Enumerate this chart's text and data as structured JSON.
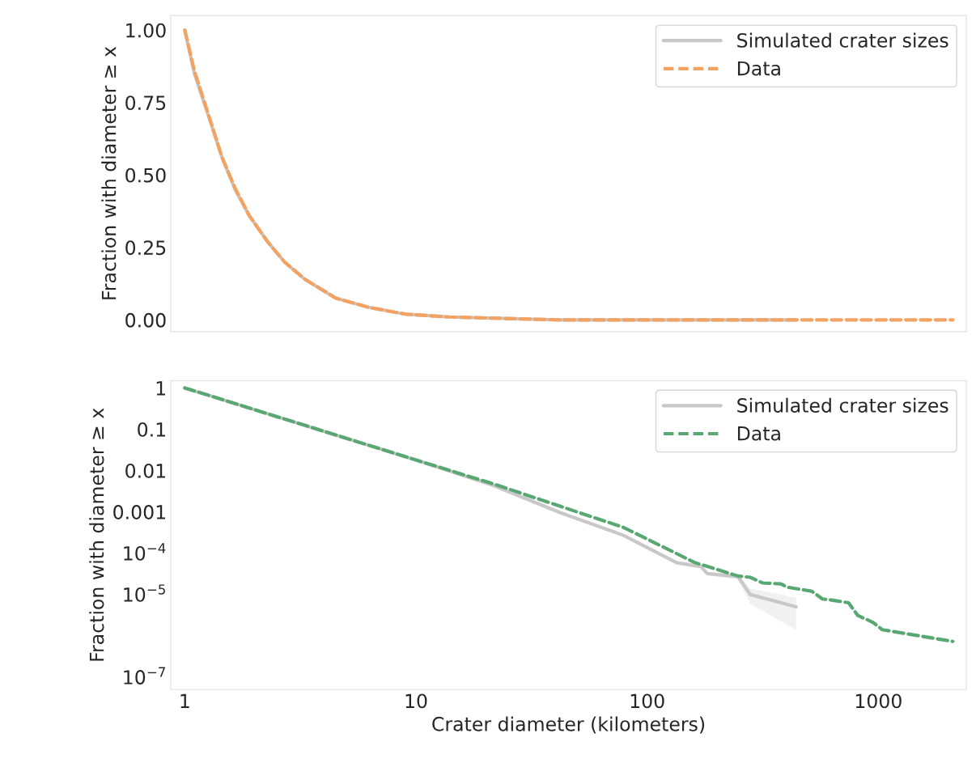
{
  "chart_data": [
    {
      "type": "line",
      "ylabel": "Fraction with diameter ≥ x",
      "xlim": [
        0.87,
        2400
      ],
      "ylim": [
        -0.04,
        1.05
      ],
      "yticks": [
        {
          "value": 0,
          "label": "0.00"
        },
        {
          "value": 0.25,
          "label": "0.25"
        },
        {
          "value": 0.5,
          "label": "0.50"
        },
        {
          "value": 0.75,
          "label": "0.75"
        },
        {
          "value": 1,
          "label": "1.00"
        }
      ],
      "log": "x",
      "grid": false,
      "legend": "top right",
      "tick_labels": "y",
      "series": [
        {
          "name": "Simulated crater sizes",
          "color": "#c8c8c8",
          "line_style": "solid",
          "x": [
            1,
            1.1,
            1.27,
            1.45,
            1.65,
            1.9,
            2.28,
            2.7,
            3.31,
            4.5,
            6.28,
            9,
            13.9,
            42,
            134,
            441
          ],
          "values": [
            1,
            0.85,
            0.7,
            0.56,
            0.45,
            0.36,
            0.27,
            0.2,
            0.14,
            0.075,
            0.043,
            0.02,
            0.01,
            0,
            0,
            0
          ]
        },
        {
          "name": "Data",
          "color": "#f4a261",
          "line_style": "dashed",
          "x": [
            1,
            1.1,
            1.27,
            1.45,
            1.65,
            1.9,
            2.28,
            2.7,
            3.31,
            4.5,
            6.28,
            9,
            13.9,
            42,
            134,
            441,
            2100
          ],
          "values": [
            1,
            0.86,
            0.705,
            0.56,
            0.455,
            0.36,
            0.27,
            0.2,
            0.14,
            0.075,
            0.043,
            0.02,
            0.01,
            0,
            0,
            0,
            0
          ]
        }
      ]
    },
    {
      "type": "line",
      "ylabel": "Fraction with diameter ≥ x",
      "xlabel": "Crater diameter (kilometers)",
      "xlim": [
        0.87,
        2400
      ],
      "ylim": [
        5e-08,
        1.5
      ],
      "xticks": [
        1,
        10,
        100,
        1000
      ],
      "yticks": [
        1,
        0.1,
        0.01,
        0.001,
        {
          "value": 0.0001,
          "label": "10$^{−4}$"
        },
        {
          "value": 1e-05,
          "label": "10$^{−5}$"
        },
        {
          "value": 1e-07,
          "label": "10$^{−7}$"
        }
      ],
      "log": "xy",
      "grid": false,
      "legend": "top right",
      "series": [
        {
          "name": "Simulated crater sizes",
          "color": "#c8c8c8",
          "line_style": "solid",
          "x": [
            1,
            10,
            21.5,
            42,
            79,
            134,
            171,
            182,
            247,
            279,
            441
          ],
          "values": [
            1,
            0.018,
            0.0044,
            0.00096,
            0.00027,
            5.9e-05,
            4.7e-05,
            3.2e-05,
            2.7e-05,
            1e-05,
            5e-06
          ],
          "lower": [
            1,
            0.018,
            0.0044,
            0.00094,
            0.00026,
            5.6e-05,
            4.4e-05,
            2.9e-05,
            2.3e-05,
            6e-06,
            1.4e-06
          ],
          "upper": [
            1,
            0.018,
            0.0044,
            0.00098,
            0.00028,
            6.2e-05,
            5e-05,
            3.5e-05,
            3.1e-05,
            1.4e-05,
            8.3e-06
          ]
        },
        {
          "name": "Data",
          "color": "#59a874",
          "line_style": "dashed",
          "x": [
            1,
            10,
            21.5,
            79,
            161,
            247,
            279,
            316,
            379,
            403,
            515,
            573,
            619,
            743,
            815,
            950,
            1040,
            2100
          ],
          "values": [
            1,
            0.018,
            0.0048,
            0.00042,
            5.9e-05,
            2.8e-05,
            2.6e-05,
            1.9e-05,
            1.8e-05,
            1.5e-05,
            1.2e-05,
            7.8e-06,
            7.4e-06,
            6.3e-06,
            3.1e-06,
            2.1e-06,
            1.4e-06,
            7.3e-07
          ]
        }
      ]
    }
  ]
}
